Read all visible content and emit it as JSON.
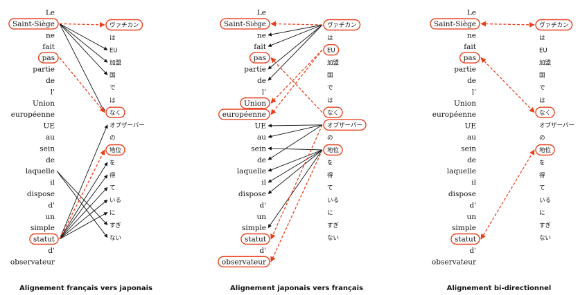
{
  "french_words": [
    "Le",
    "Saint-Siège",
    "ne",
    "fait",
    "pas",
    "partie",
    "de",
    "l'",
    "Union",
    "européenne",
    "UE",
    "au",
    "sein",
    "de",
    "laquelle",
    "il",
    "dispose",
    "d'",
    "un",
    "simple",
    "statut",
    "d'",
    "observateur"
  ],
  "japanese_words": [
    "ヴァチカン",
    "は",
    "EU",
    "加盟",
    "国",
    "で",
    "は",
    "なく",
    "オブザーバー",
    "の",
    "地位",
    "を",
    "得",
    "て",
    "いる",
    "に",
    "すぎ",
    "ない"
  ],
  "panels": [
    {
      "caption": "Alignement français vers japonais",
      "boxed_fr": [
        1,
        4,
        20
      ],
      "boxed_ja": [
        0,
        7,
        10
      ],
      "solid": [
        [
          1,
          2
        ],
        [
          1,
          3
        ],
        [
          1,
          4
        ],
        [
          1,
          7
        ],
        [
          14,
          17
        ],
        [
          14,
          16
        ],
        [
          20,
          8
        ],
        [
          20,
          11
        ],
        [
          20,
          12
        ],
        [
          20,
          13
        ],
        [
          20,
          14
        ],
        [
          20,
          15
        ]
      ],
      "dashed": [
        [
          1,
          0,
          "fr2ja"
        ],
        [
          4,
          7,
          "fr2ja"
        ],
        [
          20,
          10,
          "fr2ja"
        ]
      ]
    },
    {
      "caption": "Alignement japonais vers français",
      "boxed_fr": [
        1,
        4,
        8,
        9,
        20,
        22
      ],
      "boxed_ja": [
        0,
        2,
        7,
        8,
        10
      ],
      "solid": [
        [
          0,
          2
        ],
        [
          0,
          3
        ],
        [
          0,
          5
        ],
        [
          0,
          6
        ],
        [
          8,
          10
        ],
        [
          8,
          11
        ],
        [
          8,
          13
        ],
        [
          10,
          12
        ],
        [
          10,
          14
        ],
        [
          10,
          16
        ],
        [
          10,
          19
        ],
        [
          10,
          15
        ]
      ],
      "dashed": [
        [
          0,
          1,
          "ja2fr"
        ],
        [
          2,
          8,
          "ja2fr"
        ],
        [
          2,
          9,
          "ja2fr"
        ],
        [
          7,
          4,
          "ja2fr"
        ],
        [
          8,
          20,
          "ja2fr"
        ],
        [
          10,
          22,
          "ja2fr"
        ]
      ]
    },
    {
      "caption": "Alignement bi-directionnel",
      "boxed_fr": [
        1,
        4,
        20
      ],
      "boxed_ja": [
        0,
        7,
        10
      ],
      "solid": [],
      "dashed": [
        [
          1,
          0,
          "both"
        ],
        [
          4,
          7,
          "both"
        ],
        [
          20,
          10,
          "both"
        ]
      ]
    }
  ]
}
